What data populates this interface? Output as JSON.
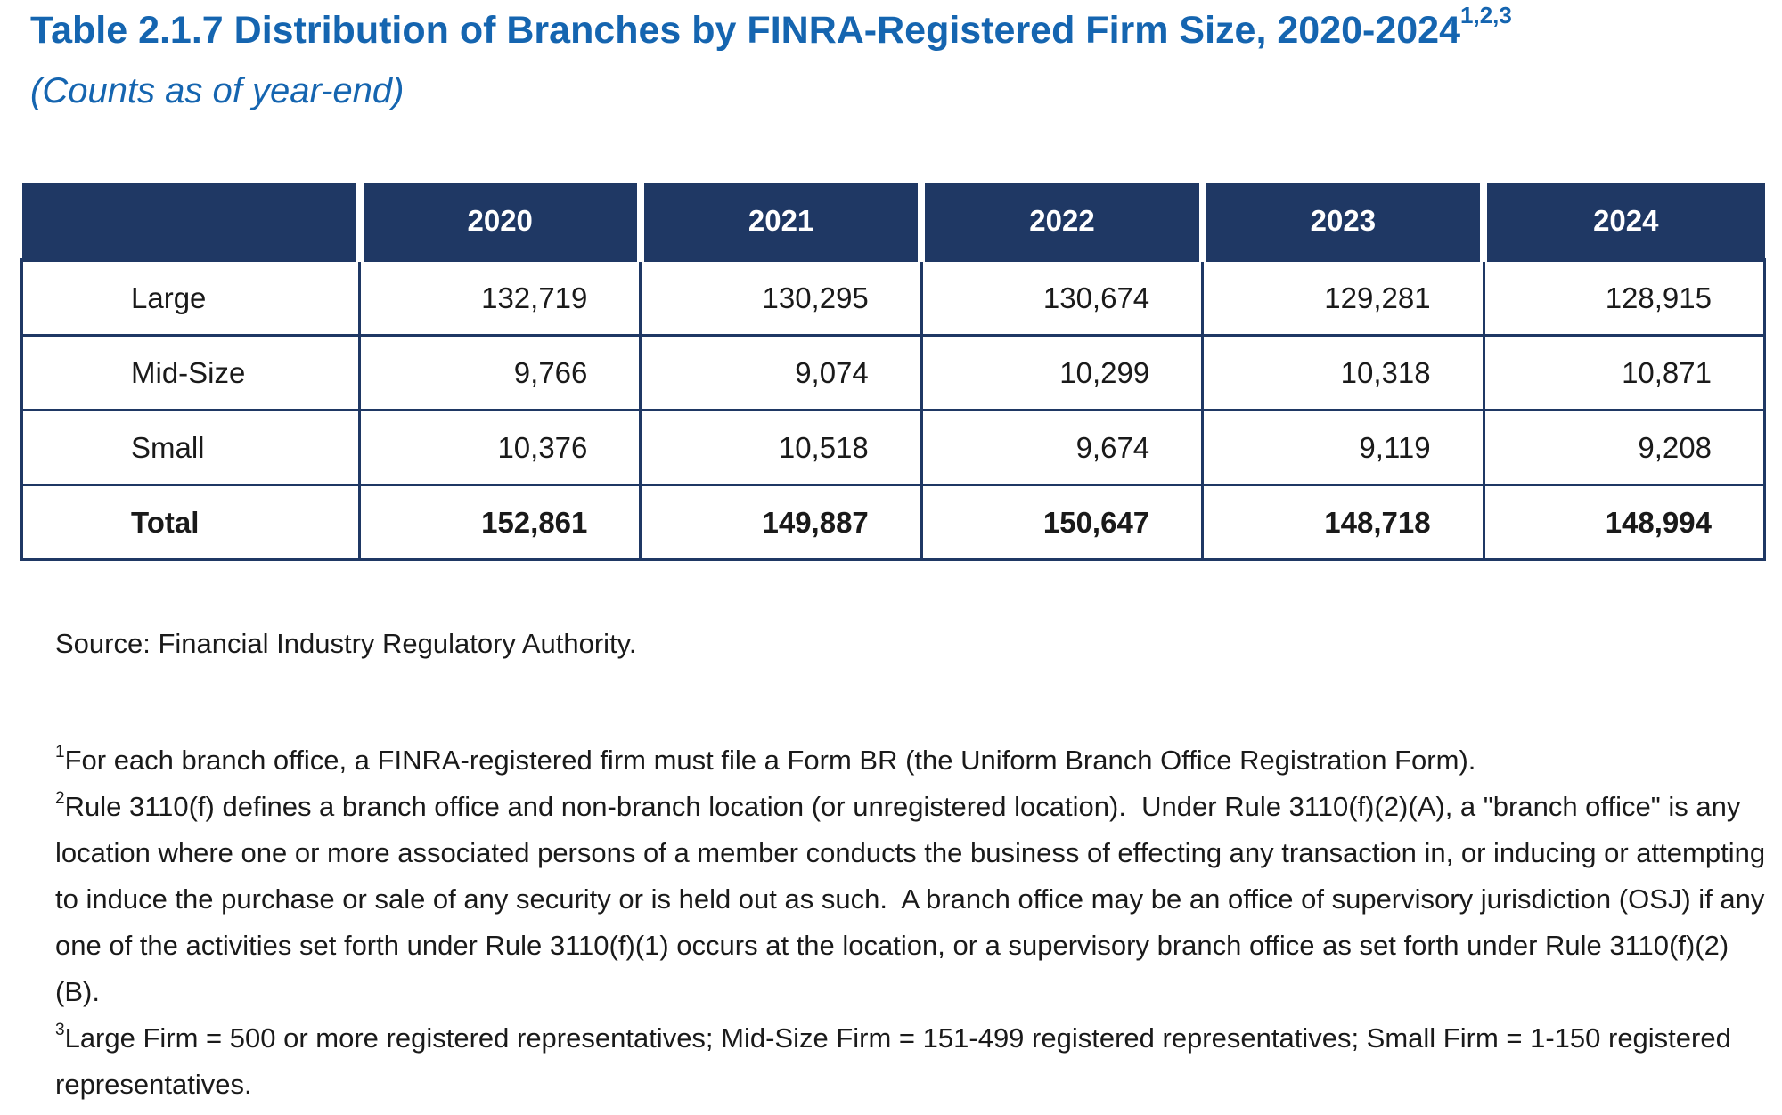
{
  "header": {
    "title": "Table 2.1.7 Distribution of Branches by FINRA-Registered Firm Size, 2020-2024",
    "title_superscript": "1,2,3",
    "subtitle": "(Counts as of year-end)"
  },
  "table": {
    "columns": [
      "2020",
      "2021",
      "2022",
      "2023",
      "2024"
    ],
    "rows": [
      {
        "label": "Large",
        "cells": [
          "132,719",
          "130,295",
          "130,674",
          "129,281",
          "128,915"
        ]
      },
      {
        "label": "Mid-Size",
        "cells": [
          "9,766",
          "9,074",
          "10,299",
          "10,318",
          "10,871"
        ]
      },
      {
        "label": "Small",
        "cells": [
          "10,376",
          "10,518",
          "9,674",
          "9,119",
          "9,208"
        ]
      },
      {
        "label": "Total",
        "cells": [
          "152,861",
          "149,887",
          "150,647",
          "148,718",
          "148,994"
        ]
      }
    ]
  },
  "source": "Source: Financial Industry Regulatory Authority.",
  "footnotes": [
    {
      "marker": "1",
      "text": "For each branch office, a FINRA-registered firm must file a Form BR (the Uniform Branch Office Registration Form)."
    },
    {
      "marker": "2",
      "text": "Rule 3110(f) defines a branch office and non-branch location (or unregistered location).  Under Rule 3110(f)(2)(A), a \"branch office\" is any location where one or more associated persons of a member conducts the business of effecting any transaction in, or inducing or attempting to induce the purchase or sale of any security or is held out as such.  A branch office may be an office of supervisory jurisdiction (OSJ) if any one of the activities set forth under Rule 3110(f)(1) occurs at the location, or a supervisory branch office as set forth under Rule 3110(f)(2)(B)."
    },
    {
      "marker": "3",
      "text": "Large Firm = 500 or more registered representatives; Mid-Size Firm = 151-499 registered representatives; Small Firm = 1-150 registered representatives."
    }
  ]
}
